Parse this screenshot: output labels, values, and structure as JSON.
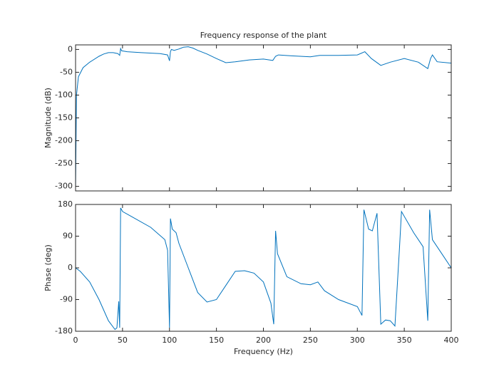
{
  "chart_data": [
    {
      "type": "line",
      "title": "Frequency response of the plant",
      "ylabel": "Magnitude (dB)",
      "xlim": [
        0,
        400
      ],
      "xticks": [
        0,
        50,
        100,
        150,
        200,
        250,
        300,
        350,
        400
      ],
      "ylim": [
        -310,
        10
      ],
      "yticks": [
        -300,
        -250,
        -200,
        -150,
        -100,
        -50,
        0
      ],
      "grid": false,
      "series": [
        {
          "color": "#0072bd",
          "x": [
            0,
            1,
            3,
            8,
            15,
            25,
            30,
            35,
            40,
            45,
            47,
            48,
            49,
            55,
            70,
            90,
            98,
            100,
            101,
            102,
            105,
            110,
            115,
            120,
            125,
            130,
            140,
            150,
            160,
            170,
            185,
            200,
            210,
            213,
            216,
            230,
            250,
            260,
            280,
            300,
            308,
            315,
            325,
            335,
            350,
            365,
            375,
            378,
            380,
            385,
            400
          ],
          "values": [
            -305,
            -100,
            -60,
            -40,
            -28,
            -15,
            -10,
            -7,
            -7,
            -9,
            -13,
            2,
            -3,
            -5,
            -7,
            -9,
            -12,
            -25,
            -5,
            0,
            -2,
            1,
            5,
            6,
            3,
            -2,
            -10,
            -20,
            -29,
            -27,
            -23,
            -21,
            -24,
            -15,
            -12,
            -14,
            -16,
            -13,
            -13,
            -12,
            -5,
            -20,
            -35,
            -28,
            -20,
            -28,
            -42,
            -20,
            -12,
            -27,
            -30
          ]
        }
      ]
    },
    {
      "type": "line",
      "ylabel": "Phase (deg)",
      "xlabel": "Frequency  (Hz)",
      "xlim": [
        0,
        400
      ],
      "xticks": [
        0,
        50,
        100,
        150,
        200,
        250,
        300,
        350,
        400
      ],
      "ylim": [
        -180,
        180
      ],
      "yticks": [
        -180,
        -90,
        0,
        90,
        180
      ],
      "grid": false,
      "series": [
        {
          "color": "#0072bd",
          "x": [
            0,
            5,
            15,
            25,
            35,
            42,
            44,
            46,
            47,
            48,
            50,
            60,
            80,
            95,
            98,
            100,
            101,
            103,
            107,
            110,
            120,
            130,
            140,
            150,
            160,
            170,
            180,
            190,
            200,
            208,
            211,
            213,
            215,
            225,
            240,
            250,
            258,
            265,
            280,
            300,
            305,
            307,
            312,
            316,
            321,
            325,
            330,
            335,
            340,
            345,
            347,
            360,
            370,
            375,
            377,
            380,
            390,
            400
          ],
          "values": [
            0,
            -10,
            -40,
            -90,
            -150,
            -175,
            -170,
            -95,
            -170,
            170,
            160,
            145,
            115,
            80,
            50,
            -170,
            140,
            110,
            100,
            70,
            0,
            -70,
            -97,
            -90,
            -50,
            -10,
            -8,
            -15,
            -40,
            -100,
            -160,
            105,
            40,
            -25,
            -45,
            -48,
            -40,
            -65,
            -90,
            -110,
            -135,
            165,
            110,
            105,
            155,
            -160,
            -148,
            -150,
            -165,
            60,
            160,
            100,
            60,
            -150,
            165,
            80,
            40,
            0
          ]
        }
      ]
    }
  ]
}
